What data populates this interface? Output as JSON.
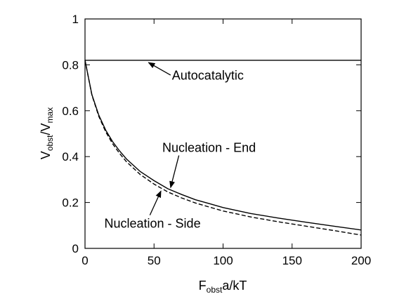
{
  "chart_data": {
    "type": "line",
    "xlabel": "F",
    "xlabel_sub": "obst",
    "xlabel_tail": "a/kT",
    "ylabel_a": "V",
    "ylabel_a_sub": "obst",
    "ylabel_sep": "/V",
    "ylabel_b_sub": "max",
    "xlim": [
      0,
      200
    ],
    "ylim": [
      0,
      1
    ],
    "xticks": [
      "0",
      "50",
      "100",
      "150",
      "200"
    ],
    "yticks": [
      "0",
      "0.2",
      "0.4",
      "0.6",
      "0.8",
      "1"
    ],
    "grid": false,
    "series": [
      {
        "name": "Autocatalytic",
        "style": "solid",
        "x": [
          0,
          200
        ],
        "y": [
          0.82,
          0.82
        ]
      },
      {
        "name": "Nucleation - End",
        "style": "solid",
        "x": [
          0,
          5,
          10,
          15,
          20,
          25,
          30,
          40,
          50,
          60,
          70,
          80,
          90,
          100,
          120,
          140,
          160,
          180,
          200
        ],
        "y": [
          0.82,
          0.67,
          0.58,
          0.515,
          0.465,
          0.425,
          0.39,
          0.335,
          0.295,
          0.26,
          0.235,
          0.212,
          0.195,
          0.178,
          0.152,
          0.132,
          0.114,
          0.097,
          0.08
        ]
      },
      {
        "name": "Nucleation - Side",
        "style": "dashed",
        "x": [
          0,
          5,
          10,
          15,
          20,
          25,
          30,
          40,
          50,
          60,
          70,
          80,
          90,
          100,
          120,
          140,
          160,
          180,
          200
        ],
        "y": [
          0.82,
          0.668,
          0.575,
          0.508,
          0.456,
          0.414,
          0.378,
          0.322,
          0.28,
          0.246,
          0.22,
          0.198,
          0.18,
          0.163,
          0.137,
          0.116,
          0.097,
          0.078,
          0.058
        ]
      }
    ],
    "annotations": [
      {
        "text": "Autocatalytic",
        "text_x": 63,
        "text_y": 0.735,
        "arrow_from": [
          62,
          0.755
        ],
        "arrow_to": [
          46,
          0.81
        ]
      },
      {
        "text": "Nucleation - End",
        "text_x": 56,
        "text_y": 0.42,
        "arrow_from": [
          68,
          0.405
        ],
        "arrow_to": [
          62,
          0.265
        ]
      },
      {
        "text": "Nucleation - Side",
        "text_x": 14,
        "text_y": 0.09,
        "arrow_from": [
          47,
          0.145
        ],
        "arrow_to": [
          55,
          0.25
        ]
      }
    ]
  }
}
